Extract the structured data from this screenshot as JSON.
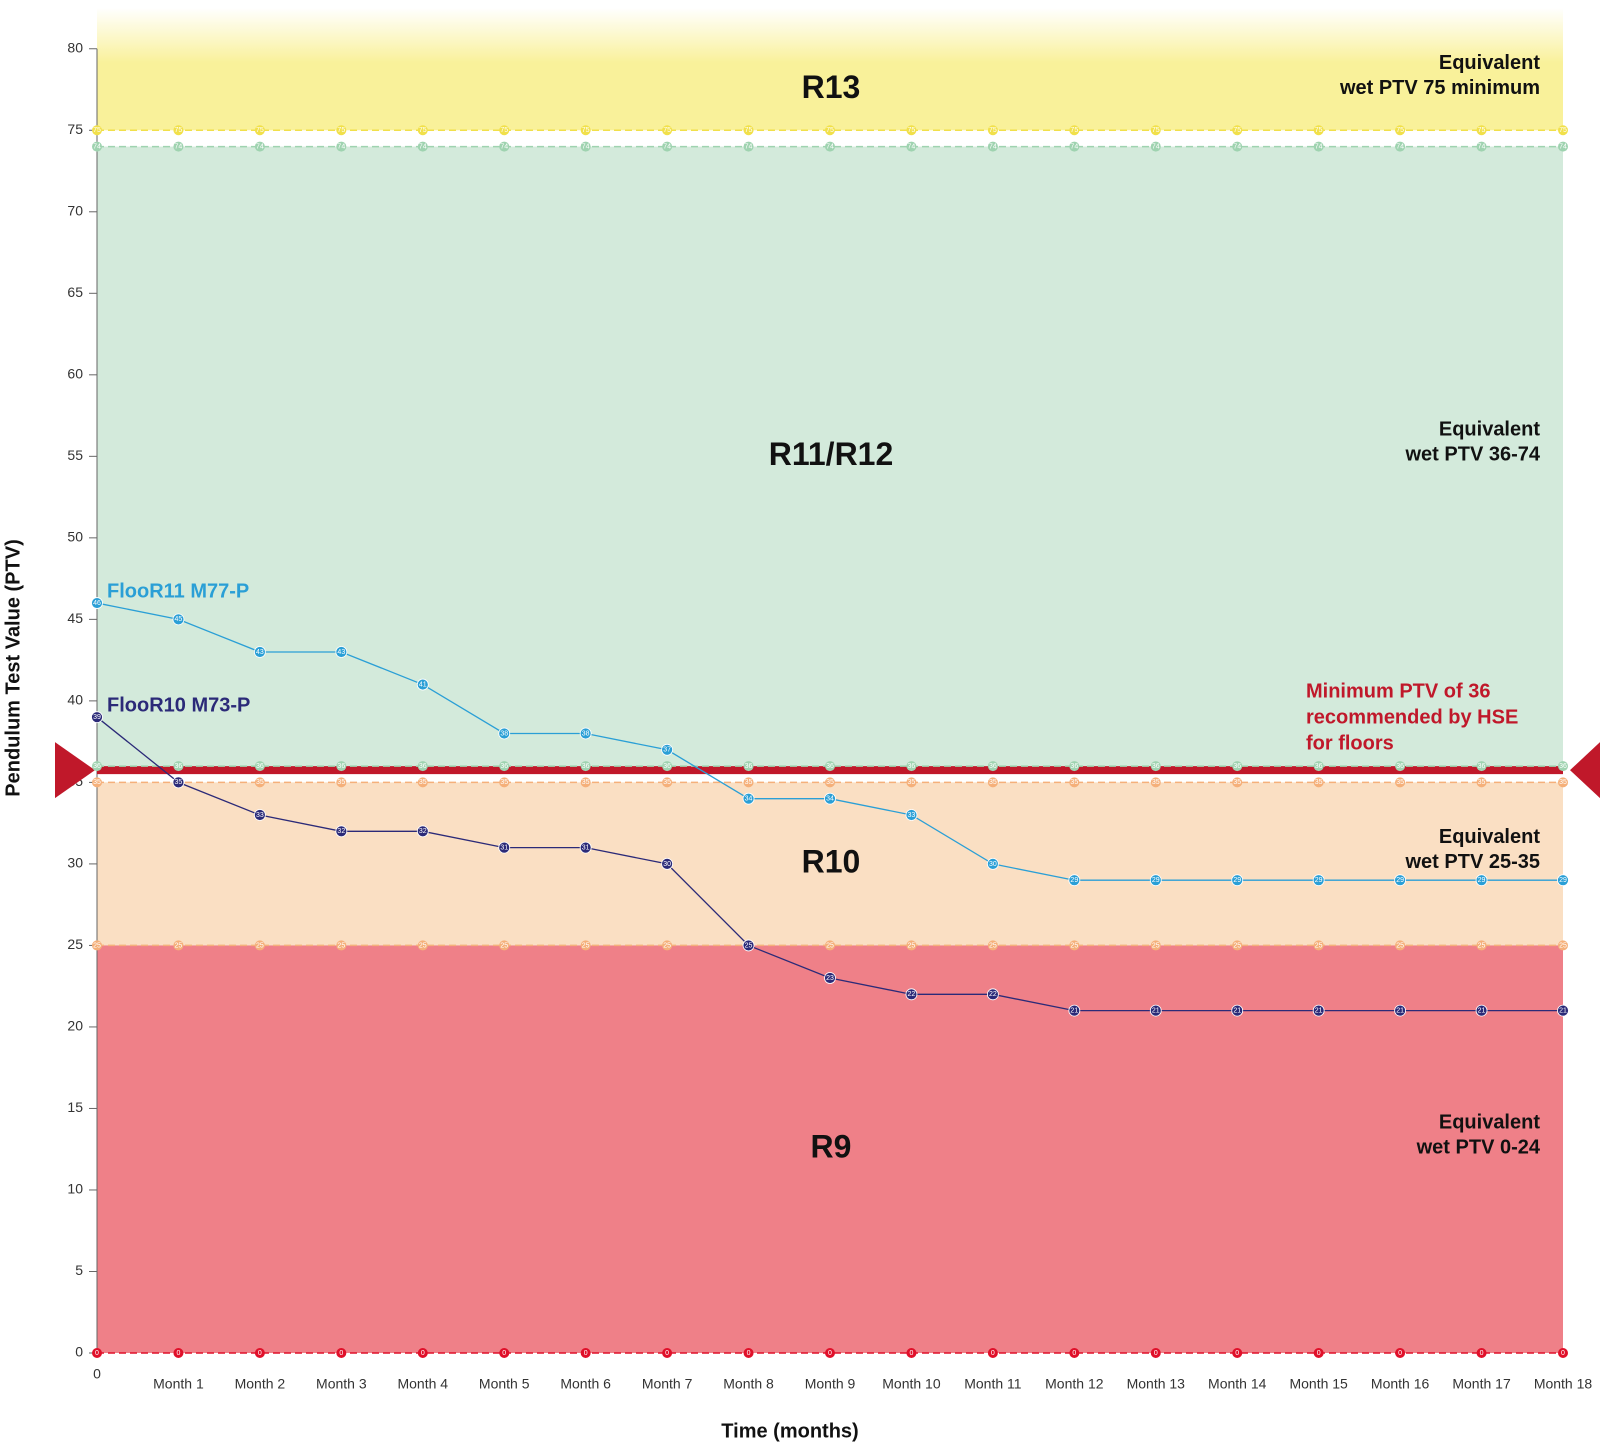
{
  "chart_data": {
    "type": "line",
    "x_label": "Time (months)",
    "y_label": "Pendulum Test Value (PTV)",
    "categories": [
      "0",
      "Month 1",
      "Month 2",
      "Month 3",
      "Month 4",
      "Month 5",
      "Month 6",
      "Month 7",
      "Month 8",
      "Month 9",
      "Month 10",
      "Month 11",
      "Month 12",
      "Month 13",
      "Month 14",
      "Month 15",
      "Month 16",
      "Month 17",
      "Month 18"
    ],
    "series": [
      {
        "name": "FlooR11 M77-P",
        "color": "#2a9fd6",
        "values": [
          46,
          45,
          43,
          43,
          41,
          38,
          38,
          37,
          34,
          34,
          33,
          30,
          29,
          29,
          29,
          29,
          29,
          29,
          29
        ]
      },
      {
        "name": "FlooR10 M73-P",
        "color": "#2b2a78",
        "values": [
          39,
          35,
          33,
          32,
          32,
          31,
          31,
          30,
          25,
          23,
          22,
          22,
          21,
          21,
          21,
          21,
          21,
          21,
          21
        ]
      }
    ],
    "ylim": [
      0,
      82.5
    ],
    "yticks": [
      0,
      5,
      10,
      15,
      20,
      25,
      30,
      35,
      40,
      45,
      50,
      55,
      60,
      65,
      70,
      75,
      80
    ],
    "bands": [
      {
        "name": "R13",
        "note": [
          "Equivalent",
          "wet PTV 75 minimum"
        ],
        "from": 75,
        "to": 82.5,
        "color": "#f9f19a"
      },
      {
        "name": "R11/R12",
        "note": [
          "Equivalent",
          "wet PTV 36-74"
        ],
        "from": 36,
        "to": 74,
        "color": "#d3eadb"
      },
      {
        "name": "R10",
        "note": [
          "Equivalent",
          "wet PTV 25-35"
        ],
        "from": 25,
        "to": 35,
        "color": "#fadfc3"
      },
      {
        "name": "R9",
        "note": [
          "Equivalent",
          "wet PTV 0-24"
        ],
        "from": 0,
        "to": 25,
        "color": "#ef8088"
      }
    ],
    "reference_lines": [
      {
        "value": 75,
        "color": "#f1e04a"
      },
      {
        "value": 74,
        "color": "#9fd3b0"
      },
      {
        "value": 36,
        "color": "#9fd3b0"
      },
      {
        "value": 35,
        "color": "#f5b07a"
      },
      {
        "value": 25,
        "color": "#f5b07a"
      },
      {
        "value": 0,
        "color": "#e0102a"
      }
    ],
    "hse_line": {
      "value": 35.75,
      "color": "#c0182a",
      "label": [
        "Minimum PTV of 36",
        "recommended by HSE",
        "for floors"
      ]
    }
  }
}
